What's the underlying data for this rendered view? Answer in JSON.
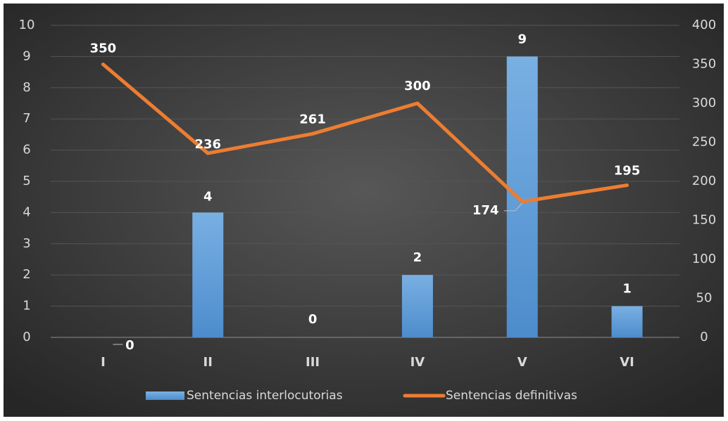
{
  "chart_data": {
    "type": "bar",
    "categories": [
      "I",
      "II",
      "III",
      "IV",
      "V",
      "VI"
    ],
    "series": [
      {
        "name": "Sentencias interlocutorias",
        "color": "#5b9bd5",
        "type": "bar",
        "axis": "y",
        "values": [
          0,
          4,
          0,
          2,
          9,
          1
        ]
      },
      {
        "name": "Sentencias definitivas",
        "color": "#ed7d31",
        "type": "line",
        "axis": "y2",
        "values": [
          350,
          236,
          261,
          300,
          174,
          195
        ]
      }
    ],
    "ylim": [
      0,
      10
    ],
    "yticks": [
      0,
      1,
      2,
      3,
      4,
      5,
      6,
      7,
      8,
      9,
      10
    ],
    "y2lim": [
      0,
      400
    ],
    "y2ticks": [
      0,
      50,
      100,
      150,
      200,
      250,
      300,
      350,
      400
    ],
    "grid": true,
    "legend": "bottom"
  }
}
